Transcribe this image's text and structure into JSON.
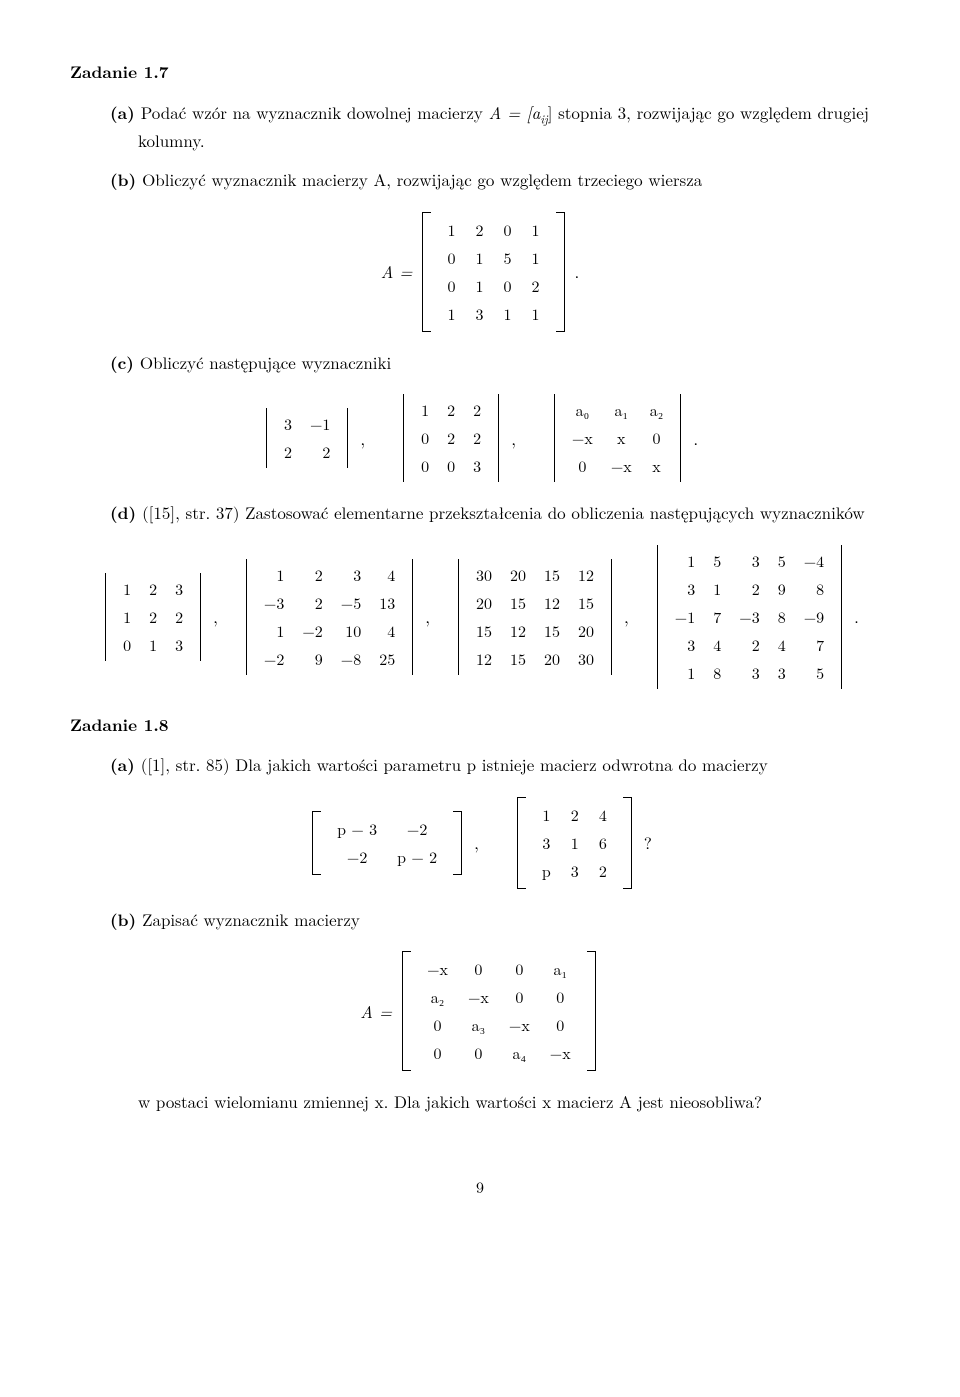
{
  "task17": {
    "heading": "Zadanie 1.7",
    "a": {
      "label": "(a)",
      "text_before": "Podać wzór na wyznacznik dowolnej macierzy ",
      "A_eq": "A = [a",
      "ij": "ij",
      "text_after": "] stopnia 3, rozwijając go względem drugiej kolumny."
    },
    "b": {
      "label": "(b)",
      "text": "Obliczyć wyznacznik macierzy A, rozwijając go względem trzeciego wiersza",
      "A_lhs": "A =",
      "matrix": [
        [
          "1",
          "2",
          "0",
          "1"
        ],
        [
          "0",
          "1",
          "5",
          "1"
        ],
        [
          "0",
          "1",
          "0",
          "2"
        ],
        [
          "1",
          "3",
          "1",
          "1"
        ]
      ],
      "period": "."
    },
    "c": {
      "label": "(c)",
      "text": "Obliczyć następujące wyznaczniki",
      "m1": [
        [
          "3",
          "−1"
        ],
        [
          "2",
          "2"
        ]
      ],
      "m2": [
        [
          "1",
          "2",
          "2"
        ],
        [
          "0",
          "2",
          "2"
        ],
        [
          "0",
          "0",
          "3"
        ]
      ],
      "m3": [
        [
          "a₀",
          "a₁",
          "a₂"
        ],
        [
          "−x",
          "x",
          "0"
        ],
        [
          "0",
          "−x",
          "x"
        ]
      ],
      "comma": ",",
      "period": "."
    },
    "d": {
      "label": "(d)",
      "cite": "([15], str. 37) Zastosować elementarne przekształcenia do obliczenia następujących wyznaczników",
      "m1": [
        [
          "1",
          "2",
          "3"
        ],
        [
          "1",
          "2",
          "2"
        ],
        [
          "0",
          "1",
          "3"
        ]
      ],
      "m2": [
        [
          "1",
          "2",
          "3",
          "4"
        ],
        [
          "−3",
          "2",
          "−5",
          "13"
        ],
        [
          "1",
          "−2",
          "10",
          "4"
        ],
        [
          "−2",
          "9",
          "−8",
          "25"
        ]
      ],
      "m3": [
        [
          "30",
          "20",
          "15",
          "12"
        ],
        [
          "20",
          "15",
          "12",
          "15"
        ],
        [
          "15",
          "12",
          "15",
          "20"
        ],
        [
          "12",
          "15",
          "20",
          "30"
        ]
      ],
      "m4": [
        [
          "1",
          "5",
          "3",
          "5",
          "−4"
        ],
        [
          "3",
          "1",
          "2",
          "9",
          "8"
        ],
        [
          "−1",
          "7",
          "−3",
          "8",
          "−9"
        ],
        [
          "3",
          "4",
          "2",
          "4",
          "7"
        ],
        [
          "1",
          "8",
          "3",
          "3",
          "5"
        ]
      ],
      "comma": ",",
      "period": "."
    }
  },
  "task18": {
    "heading": "Zadanie 1.8",
    "a": {
      "label": "(a)",
      "text": "([1], str. 85) Dla jakich wartości parametru p istnieje macierz odwrotna do macierzy",
      "m1": [
        [
          "p − 3",
          "−2"
        ],
        [
          "−2",
          "p − 2"
        ]
      ],
      "m2": [
        [
          "1",
          "2",
          "4"
        ],
        [
          "3",
          "1",
          "6"
        ],
        [
          "p",
          "3",
          "2"
        ]
      ],
      "comma": ",",
      "q": "?"
    },
    "b": {
      "label": "(b)",
      "text": "Zapisać wyznacznik macierzy",
      "A_lhs": "A =",
      "matrix": [
        [
          "−x",
          "0",
          "0",
          "a₁"
        ],
        [
          "a₂",
          "−x",
          "0",
          "0"
        ],
        [
          "0",
          "a₃",
          "−x",
          "0"
        ],
        [
          "0",
          "0",
          "a₄",
          "−x"
        ]
      ],
      "text2": "w postaci wielomianu zmiennej x. Dla jakich wartości x macierz A jest nieosobliwa?"
    }
  },
  "page_number": "9"
}
